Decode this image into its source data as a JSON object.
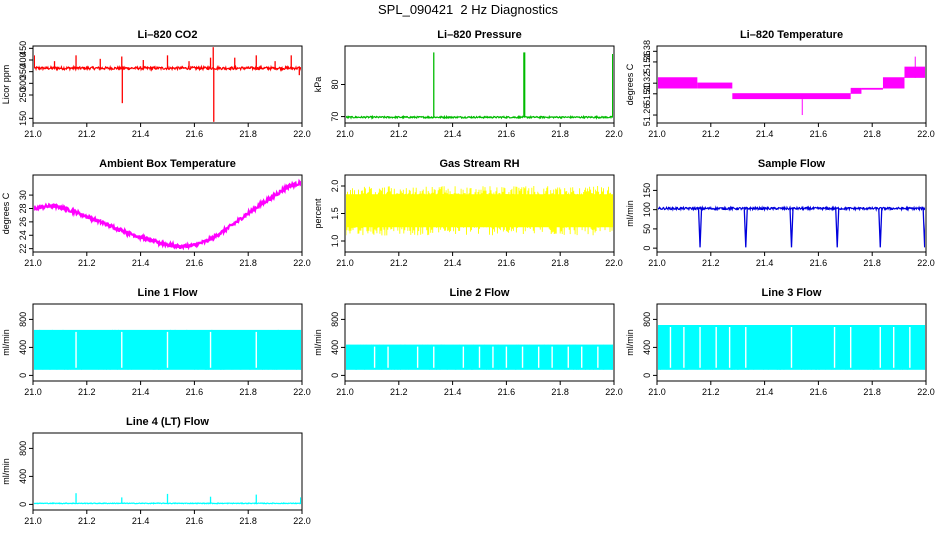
{
  "page_title": "SPL_090421  2 Hz Diagnostics",
  "chart_data": [
    {
      "type": "line",
      "title": "Li–820 CO2",
      "ylabel": "Licor ppm",
      "xlim": [
        21.0,
        22.0
      ],
      "ylim": [
        130,
        460
      ],
      "xticks": [
        21.0,
        21.2,
        21.4,
        21.6,
        21.8,
        22.0
      ],
      "xtick_labels": [
        "21.0",
        "21.2",
        "21.4",
        "21.6",
        "21.8",
        "22.0"
      ],
      "yticks": [
        150,
        250,
        300,
        350,
        400,
        450
      ],
      "ytick_labels": [
        "150",
        "250",
        "300",
        "350",
        "400",
        "450"
      ],
      "color": "#ff0000",
      "series": [
        {
          "baseline": 365,
          "noise": 6,
          "spikes": [
            {
              "x": 21.0,
              "y": 160
            },
            {
              "x": 21.005,
              "y": 420
            },
            {
              "x": 21.08,
              "y": 395
            },
            {
              "x": 21.16,
              "y": 420
            },
            {
              "x": 21.25,
              "y": 405
            },
            {
              "x": 21.33,
              "y": 415
            },
            {
              "x": 21.332,
              "y": 215
            },
            {
              "x": 21.41,
              "y": 400
            },
            {
              "x": 21.5,
              "y": 420
            },
            {
              "x": 21.58,
              "y": 395
            },
            {
              "x": 21.66,
              "y": 410
            },
            {
              "x": 21.67,
              "y": 455
            },
            {
              "x": 21.672,
              "y": 135
            },
            {
              "x": 21.75,
              "y": 410
            },
            {
              "x": 21.83,
              "y": 420
            },
            {
              "x": 21.9,
              "y": 395
            },
            {
              "x": 21.96,
              "y": 420
            },
            {
              "x": 21.99,
              "y": 335
            }
          ]
        }
      ]
    },
    {
      "type": "line",
      "title": "Li–820 Pressure",
      "ylabel": "kPa",
      "xlim": [
        21.0,
        22.0
      ],
      "ylim": [
        68,
        92
      ],
      "xticks": [
        21.0,
        21.2,
        21.4,
        21.6,
        21.8,
        22.0
      ],
      "xtick_labels": [
        "21.0",
        "21.2",
        "21.4",
        "21.6",
        "21.8",
        "22.0"
      ],
      "yticks": [
        70,
        80
      ],
      "ytick_labels": [
        "70",
        "80"
      ],
      "color": "#00bb00",
      "series": [
        {
          "baseline": 69.8,
          "noise": 0.25,
          "spikes": [
            {
              "x": 21.0,
              "y": 86
            },
            {
              "x": 21.33,
              "y": 90
            },
            {
              "x": 21.665,
              "y": 90
            },
            {
              "x": 21.668,
              "y": 90
            },
            {
              "x": 21.995,
              "y": 89.5
            }
          ]
        }
      ]
    },
    {
      "type": "line",
      "title": "Li–820 Temperature",
      "ylabel": "degrees C",
      "xlim": [
        21.0,
        22.0
      ],
      "ylim": [
        51.245,
        51.39
      ],
      "xticks": [
        21.0,
        21.2,
        21.4,
        21.6,
        21.8,
        22.0
      ],
      "xtick_labels": [
        "21.0",
        "21.2",
        "21.4",
        "21.6",
        "21.8",
        "22.0"
      ],
      "yticks": [
        51.26,
        51.3,
        51.32,
        51.36,
        51.38
      ],
      "ytick_labels": [
        "51.26",
        "51.30",
        "51.32",
        "51.36",
        "51.38"
      ],
      "color": "#ff00ff",
      "series": [
        {
          "quantized_bands": [
            {
              "x0": 21.0,
              "x1": 21.15,
              "low": 51.31,
              "high": 51.33
            },
            {
              "x0": 21.15,
              "x1": 21.28,
              "low": 51.31,
              "high": 51.32
            },
            {
              "x0": 21.28,
              "x1": 21.72,
              "low": 51.29,
              "high": 51.3
            },
            {
              "x0": 21.72,
              "x1": 21.76,
              "low": 51.3,
              "high": 51.31
            },
            {
              "x0": 21.76,
              "x1": 21.84,
              "low": 51.31,
              "high": 51.31
            },
            {
              "x0": 21.84,
              "x1": 21.92,
              "low": 51.31,
              "high": 51.33
            },
            {
              "x0": 21.92,
              "x1": 22.0,
              "low": 51.33,
              "high": 51.35
            }
          ],
          "spikes": [
            {
              "x": 21.54,
              "y": 51.26
            },
            {
              "x": 21.96,
              "y": 51.37
            }
          ]
        }
      ]
    },
    {
      "type": "line",
      "title": "Ambient Box Temperature",
      "ylabel": "degrees C",
      "xlim": [
        21.0,
        22.0
      ],
      "ylim": [
        21.5,
        33
      ],
      "xticks": [
        21.0,
        21.2,
        21.4,
        21.6,
        21.8,
        22.0
      ],
      "xtick_labels": [
        "21.0",
        "21.2",
        "21.4",
        "21.6",
        "21.8",
        "22.0"
      ],
      "yticks": [
        22,
        24,
        26,
        28,
        30
      ],
      "ytick_labels": [
        "22",
        "24",
        "26",
        "28",
        "30"
      ],
      "color": "#ff00ff",
      "series": [
        {
          "x": [
            21.0,
            21.03,
            21.07,
            21.1,
            21.15,
            21.2,
            21.25,
            21.3,
            21.35,
            21.4,
            21.45,
            21.5,
            21.55,
            21.6,
            21.65,
            21.7,
            21.75,
            21.8,
            21.85,
            21.9,
            21.95,
            22.0
          ],
          "y": [
            27.9,
            28.2,
            28.4,
            28.2,
            27.6,
            26.8,
            26.0,
            25.2,
            24.4,
            23.7,
            23.1,
            22.6,
            22.3,
            22.5,
            23.2,
            24.4,
            25.8,
            27.3,
            28.7,
            30.0,
            31.3,
            31.9
          ],
          "noise": 0.25
        }
      ]
    },
    {
      "type": "line",
      "title": "Gas Stream RH",
      "ylabel": "percent",
      "xlim": [
        21.0,
        22.0
      ],
      "ylim": [
        0.8,
        2.2
      ],
      "xticks": [
        21.0,
        21.2,
        21.4,
        21.6,
        21.8,
        22.0
      ],
      "xtick_labels": [
        "21.0",
        "21.2",
        "21.4",
        "21.6",
        "21.8",
        "22.0"
      ],
      "yticks": [
        1.0,
        1.5,
        2.0
      ],
      "ytick_labels": [
        "1.0",
        "1.5",
        "2.0"
      ],
      "color": "#ffff00",
      "series": [
        {
          "low": 1.1,
          "high": 2.0,
          "min": 0.9,
          "max": 2.1
        }
      ]
    },
    {
      "type": "line",
      "title": "Sample Flow",
      "ylabel": "ml/min",
      "xlim": [
        21.0,
        22.0
      ],
      "ylim": [
        -10,
        190
      ],
      "xticks": [
        21.0,
        21.2,
        21.4,
        21.6,
        21.8,
        22.0
      ],
      "xtick_labels": [
        "21.0",
        "21.2",
        "21.4",
        "21.6",
        "21.8",
        "22.0"
      ],
      "yticks": [
        0,
        50,
        100,
        150
      ],
      "ytick_labels": [
        "0",
        "50",
        "100",
        "150"
      ],
      "color": "#0000dd",
      "series": [
        {
          "baseline": 103,
          "noise": 3,
          "dips": [
            21.16,
            21.33,
            21.5,
            21.67,
            21.83,
            21.995
          ],
          "dip_value": 2
        }
      ]
    },
    {
      "type": "area",
      "title": "Line 1 Flow",
      "ylabel": "ml/min",
      "xlim": [
        21.0,
        22.0
      ],
      "ylim": [
        -80,
        1020
      ],
      "xticks": [
        21.0,
        21.2,
        21.4,
        21.6,
        21.8,
        22.0
      ],
      "xtick_labels": [
        "21.0",
        "21.2",
        "21.4",
        "21.6",
        "21.8",
        "22.0"
      ],
      "yticks": [
        0,
        400,
        800
      ],
      "ytick_labels": [
        "0",
        "400",
        "800"
      ],
      "color": "#00ffff",
      "series": [
        {
          "low": 80,
          "high": 650,
          "gaps": [
            21.16,
            21.33,
            21.5,
            21.66,
            21.83
          ]
        }
      ]
    },
    {
      "type": "area",
      "title": "Line 2 Flow",
      "ylabel": "ml/min",
      "xlim": [
        21.0,
        22.0
      ],
      "ylim": [
        -80,
        1020
      ],
      "xticks": [
        21.0,
        21.2,
        21.4,
        21.6,
        21.8,
        22.0
      ],
      "xtick_labels": [
        "21.0",
        "21.2",
        "21.4",
        "21.6",
        "21.8",
        "22.0"
      ],
      "yticks": [
        0,
        400,
        800
      ],
      "ytick_labels": [
        "0",
        "400",
        "800"
      ],
      "color": "#00ffff",
      "series": [
        {
          "low": 80,
          "high": 440,
          "gaps": [
            21.11,
            21.16,
            21.27,
            21.33,
            21.44,
            21.5,
            21.55,
            21.6,
            21.66,
            21.72,
            21.77,
            21.83,
            21.88,
            21.94
          ]
        }
      ]
    },
    {
      "type": "area",
      "title": "Line 3 Flow",
      "ylabel": "ml/min",
      "xlim": [
        21.0,
        22.0
      ],
      "ylim": [
        -80,
        1020
      ],
      "xticks": [
        21.0,
        21.2,
        21.4,
        21.6,
        21.8,
        22.0
      ],
      "xtick_labels": [
        "21.0",
        "21.2",
        "21.4",
        "21.6",
        "21.8",
        "22.0"
      ],
      "yticks": [
        0,
        400,
        800
      ],
      "ytick_labels": [
        "0",
        "400",
        "800"
      ],
      "color": "#00ffff",
      "series": [
        {
          "low": 80,
          "high": 720,
          "gaps": [
            21.05,
            21.1,
            21.16,
            21.22,
            21.27,
            21.33,
            21.5,
            21.66,
            21.72,
            21.83,
            21.88,
            21.94
          ]
        }
      ]
    },
    {
      "type": "line",
      "title": "Line 4 (LT) Flow",
      "ylabel": "ml/min",
      "xlim": [
        21.0,
        22.0
      ],
      "ylim": [
        -80,
        1020
      ],
      "xticks": [
        21.0,
        21.2,
        21.4,
        21.6,
        21.8,
        22.0
      ],
      "xtick_labels": [
        "21.0",
        "21.2",
        "21.4",
        "21.6",
        "21.8",
        "22.0"
      ],
      "yticks": [
        0,
        400,
        800
      ],
      "ytick_labels": [
        "0",
        "400",
        "800"
      ],
      "color": "#00ffff",
      "series": [
        {
          "baseline": 15,
          "noise": 5,
          "spikes": [
            {
              "x": 21.16,
              "y": 160
            },
            {
              "x": 21.33,
              "y": 100
            },
            {
              "x": 21.5,
              "y": 150
            },
            {
              "x": 21.66,
              "y": 110
            },
            {
              "x": 21.83,
              "y": 140
            },
            {
              "x": 21.995,
              "y": 100
            }
          ]
        }
      ]
    }
  ]
}
